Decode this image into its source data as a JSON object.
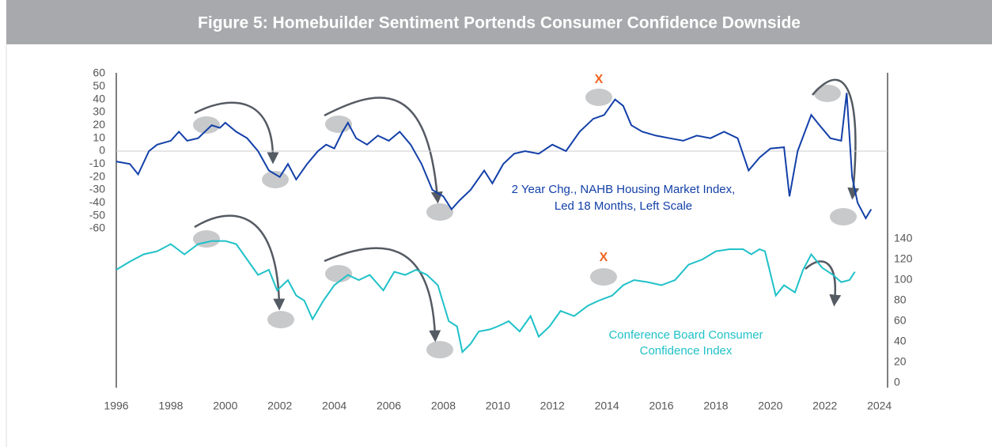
{
  "chart_data": {
    "type": "line",
    "title": "Figure 5: Homebuilder Sentiment Portends Consumer Confidence Downside",
    "annotations": [
      "2 Year Chg., NAHB Housing Market Index,",
      "Led 18 Months, Left Scale",
      "Conference Board Consumer",
      "Confidence Index",
      "X",
      "X"
    ],
    "xlim": [
      1996,
      2024.3
    ],
    "xticks": [
      1996,
      1998,
      2000,
      2002,
      2004,
      2006,
      2008,
      2010,
      2012,
      2014,
      2016,
      2018,
      2020,
      2022,
      2024
    ],
    "ylim": [
      -60,
      60
    ],
    "yticks": [
      60,
      50,
      40,
      30,
      20,
      10,
      0,
      -10,
      -20,
      -30,
      -40,
      -50,
      -60
    ],
    "y2lim": [
      0,
      140
    ],
    "y2ticks": [
      0,
      20,
      40,
      60,
      80,
      100,
      120,
      140
    ],
    "series": [
      {
        "name": "2 Year Chg., NAHB Housing Market Index, Led 18 Months, Left Scale",
        "color": "#1340a8",
        "x": [
          1996,
          1996.5,
          1996.8,
          1997.2,
          1997.5,
          1998,
          1998.3,
          1998.6,
          1999,
          1999.5,
          1999.8,
          2000,
          2000.4,
          2000.8,
          2001.2,
          2001.6,
          2002,
          2002.3,
          2002.6,
          2003,
          2003.4,
          2003.7,
          2004,
          2004.3,
          2004.5,
          2004.8,
          2005.2,
          2005.6,
          2006,
          2006.4,
          2006.8,
          2007.2,
          2007.6,
          2008,
          2008.3,
          2008.6,
          2009,
          2009.5,
          2009.8,
          2010.2,
          2010.6,
          2011,
          2011.5,
          2012,
          2012.5,
          2013,
          2013.5,
          2013.9,
          2014.3,
          2014.6,
          2014.9,
          2015.3,
          2015.8,
          2016.3,
          2016.8,
          2017.3,
          2017.8,
          2018.3,
          2018.8,
          2019.2,
          2019.6,
          2020,
          2020.5,
          2020.7,
          2021,
          2021.5,
          2021.8,
          2022.2,
          2022.6,
          2022.8,
          2023,
          2023.2,
          2023.5,
          2023.7
        ],
        "values": [
          -8,
          -10,
          -18,
          0,
          5,
          8,
          15,
          8,
          10,
          20,
          18,
          22,
          15,
          10,
          0,
          -15,
          -20,
          -10,
          -22,
          -10,
          0,
          5,
          2,
          15,
          22,
          10,
          5,
          12,
          8,
          15,
          5,
          -10,
          -30,
          -35,
          -45,
          -38,
          -30,
          -15,
          -25,
          -10,
          -2,
          0,
          -2,
          5,
          0,
          15,
          25,
          28,
          40,
          35,
          20,
          15,
          12,
          10,
          8,
          12,
          10,
          15,
          10,
          -15,
          -5,
          2,
          3,
          -35,
          0,
          28,
          20,
          10,
          8,
          45,
          -20,
          -40,
          -52,
          -45
        ]
      },
      {
        "name": "Conference Board Consumer Confidence Index",
        "color": "#1fc1c8",
        "axis": "y2",
        "x": [
          1996,
          1996.5,
          1997,
          1997.5,
          1998,
          1998.5,
          1999,
          1999.5,
          2000,
          2000.4,
          2000.8,
          2001.2,
          2001.6,
          2001.9,
          2002.3,
          2002.6,
          2002.9,
          2003.2,
          2003.6,
          2004,
          2004.5,
          2004.9,
          2005.3,
          2005.8,
          2006.2,
          2006.6,
          2007,
          2007.4,
          2007.8,
          2008.2,
          2008.5,
          2008.7,
          2009,
          2009.3,
          2009.7,
          2010,
          2010.4,
          2010.8,
          2011.2,
          2011.5,
          2011.9,
          2012.3,
          2012.8,
          2013.3,
          2013.7,
          2014.2,
          2014.6,
          2015,
          2015.5,
          2016,
          2016.5,
          2017,
          2017.5,
          2018,
          2018.5,
          2019,
          2019.3,
          2019.6,
          2019.8,
          2020.2,
          2020.5,
          2020.9,
          2021.2,
          2021.5,
          2021.9,
          2022.3,
          2022.6,
          2022.9,
          2023.1
        ],
        "values": [
          110,
          118,
          125,
          128,
          135,
          125,
          135,
          138,
          138,
          135,
          120,
          105,
          110,
          90,
          100,
          85,
          80,
          62,
          80,
          95,
          105,
          100,
          105,
          90,
          108,
          105,
          110,
          105,
          95,
          60,
          55,
          30,
          38,
          50,
          52,
          55,
          60,
          50,
          65,
          45,
          55,
          70,
          65,
          75,
          80,
          85,
          95,
          100,
          98,
          95,
          100,
          115,
          120,
          128,
          130,
          130,
          125,
          130,
          128,
          85,
          95,
          88,
          110,
          125,
          112,
          105,
          98,
          100,
          108
        ]
      }
    ]
  }
}
